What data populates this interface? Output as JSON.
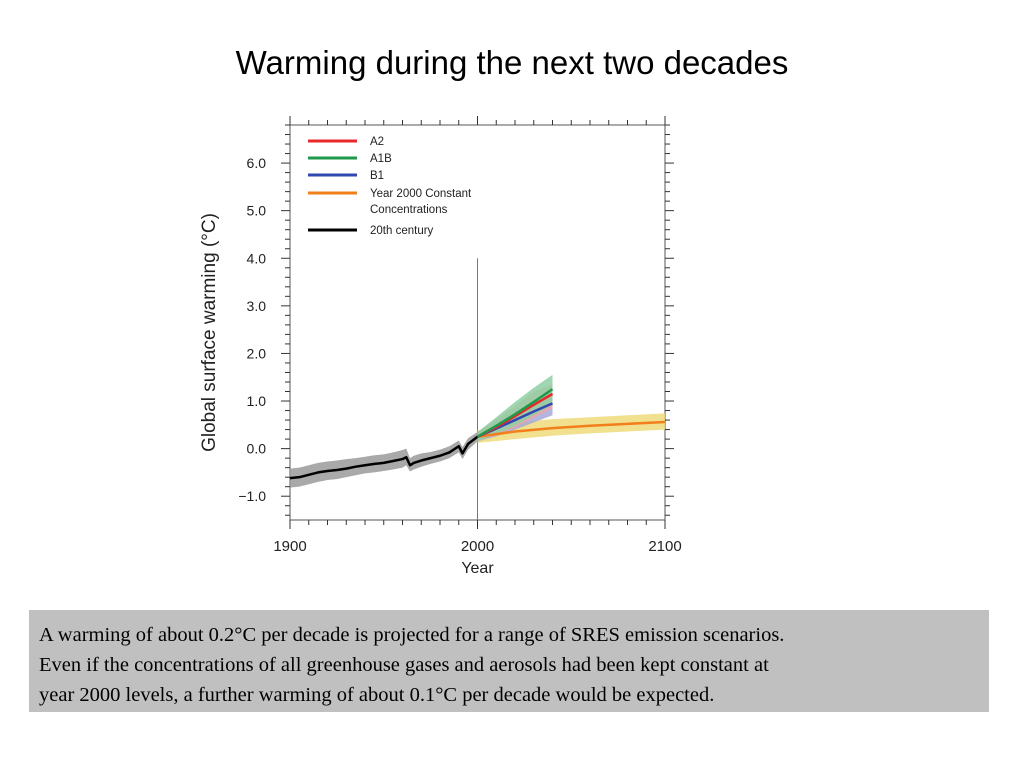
{
  "slide": {
    "title": "Warming during the next two decades",
    "caption": [
      "A warming of about 0.2°C per decade is projected for a range of SRES emission scenarios.",
      "Even if the concentrations of all greenhouse gases and aerosols had been kept constant at",
      "year 2000 levels, a further warming of about 0.1°C per decade would be expected."
    ]
  },
  "chart_data": {
    "type": "line",
    "title": "",
    "xlabel": "Year",
    "ylabel": "Global surface warming (°C)",
    "xlim": [
      1900,
      2100
    ],
    "ylim": [
      -1.5,
      6.8
    ],
    "xticks": [
      1900,
      2000,
      2100
    ],
    "xtick_labels": [
      "1900",
      "2000",
      "2100"
    ],
    "yticks": [
      -1,
      0,
      1,
      2,
      3,
      4,
      5,
      6
    ],
    "ytick_labels": [
      "−1.0",
      "0.0",
      "1.0",
      "2.0",
      "3.0",
      "4.0",
      "5.0",
      "6.0"
    ],
    "grid": false,
    "legend": "top-left",
    "series": [
      {
        "name": "A2",
        "color": "#e8282b",
        "band_color": "#f2a3a3",
        "x": [
          2000,
          2010,
          2020,
          2030,
          2040
        ],
        "y": [
          0.25,
          0.45,
          0.68,
          0.92,
          1.15
        ],
        "band_low": [
          0.15,
          0.28,
          0.45,
          0.65,
          0.85
        ],
        "band_high": [
          0.35,
          0.62,
          0.9,
          1.2,
          1.35
        ]
      },
      {
        "name": "A1B",
        "color": "#1f9a4b",
        "band_color": "#8fd0a4",
        "x": [
          2000,
          2010,
          2020,
          2030,
          2040
        ],
        "y": [
          0.25,
          0.48,
          0.72,
          0.98,
          1.25
        ],
        "band_low": [
          0.15,
          0.3,
          0.48,
          0.7,
          0.92
        ],
        "band_high": [
          0.35,
          0.66,
          0.98,
          1.28,
          1.55
        ]
      },
      {
        "name": "B1",
        "color": "#3048b0",
        "band_color": "#a7a8d8",
        "x": [
          2000,
          2010,
          2020,
          2030,
          2040
        ],
        "y": [
          0.25,
          0.42,
          0.6,
          0.78,
          0.95
        ],
        "band_low": [
          0.15,
          0.26,
          0.4,
          0.55,
          0.7
        ],
        "band_high": [
          0.35,
          0.58,
          0.8,
          1.0,
          1.15
        ]
      },
      {
        "name": "Year 2000 Constant Concentrations",
        "color": "#f07f1c",
        "band_color": "#eedb7a",
        "x": [
          2000,
          2020,
          2040,
          2060,
          2080,
          2100
        ],
        "y": [
          0.25,
          0.36,
          0.43,
          0.48,
          0.52,
          0.56
        ],
        "band_low": [
          0.12,
          0.2,
          0.27,
          0.32,
          0.36,
          0.4
        ],
        "band_high": [
          0.38,
          0.55,
          0.62,
          0.66,
          0.7,
          0.74
        ]
      },
      {
        "name": "20th century",
        "color": "#000000",
        "band_color": "#9a9a9a",
        "x": [
          1900,
          1905,
          1910,
          1915,
          1920,
          1925,
          1930,
          1935,
          1940,
          1945,
          1950,
          1955,
          1960,
          1962,
          1964,
          1966,
          1970,
          1975,
          1980,
          1985,
          1990,
          1992,
          1995,
          2000
        ],
        "y": [
          -0.62,
          -0.6,
          -0.55,
          -0.5,
          -0.47,
          -0.45,
          -0.42,
          -0.38,
          -0.35,
          -0.32,
          -0.3,
          -0.26,
          -0.22,
          -0.18,
          -0.35,
          -0.3,
          -0.25,
          -0.2,
          -0.15,
          -0.08,
          0.05,
          -0.1,
          0.1,
          0.25
        ],
        "band_low": [
          -0.82,
          -0.8,
          -0.75,
          -0.7,
          -0.66,
          -0.64,
          -0.6,
          -0.56,
          -0.52,
          -0.5,
          -0.47,
          -0.44,
          -0.4,
          -0.35,
          -0.48,
          -0.44,
          -0.38,
          -0.32,
          -0.27,
          -0.2,
          -0.08,
          -0.22,
          -0.02,
          0.15
        ],
        "band_high": [
          -0.42,
          -0.4,
          -0.35,
          -0.3,
          -0.27,
          -0.25,
          -0.22,
          -0.2,
          -0.17,
          -0.14,
          -0.12,
          -0.08,
          -0.03,
          0.0,
          -0.2,
          -0.15,
          -0.1,
          -0.07,
          -0.02,
          0.05,
          0.17,
          0.03,
          0.22,
          0.35
        ]
      }
    ],
    "vline_x": 2000
  }
}
